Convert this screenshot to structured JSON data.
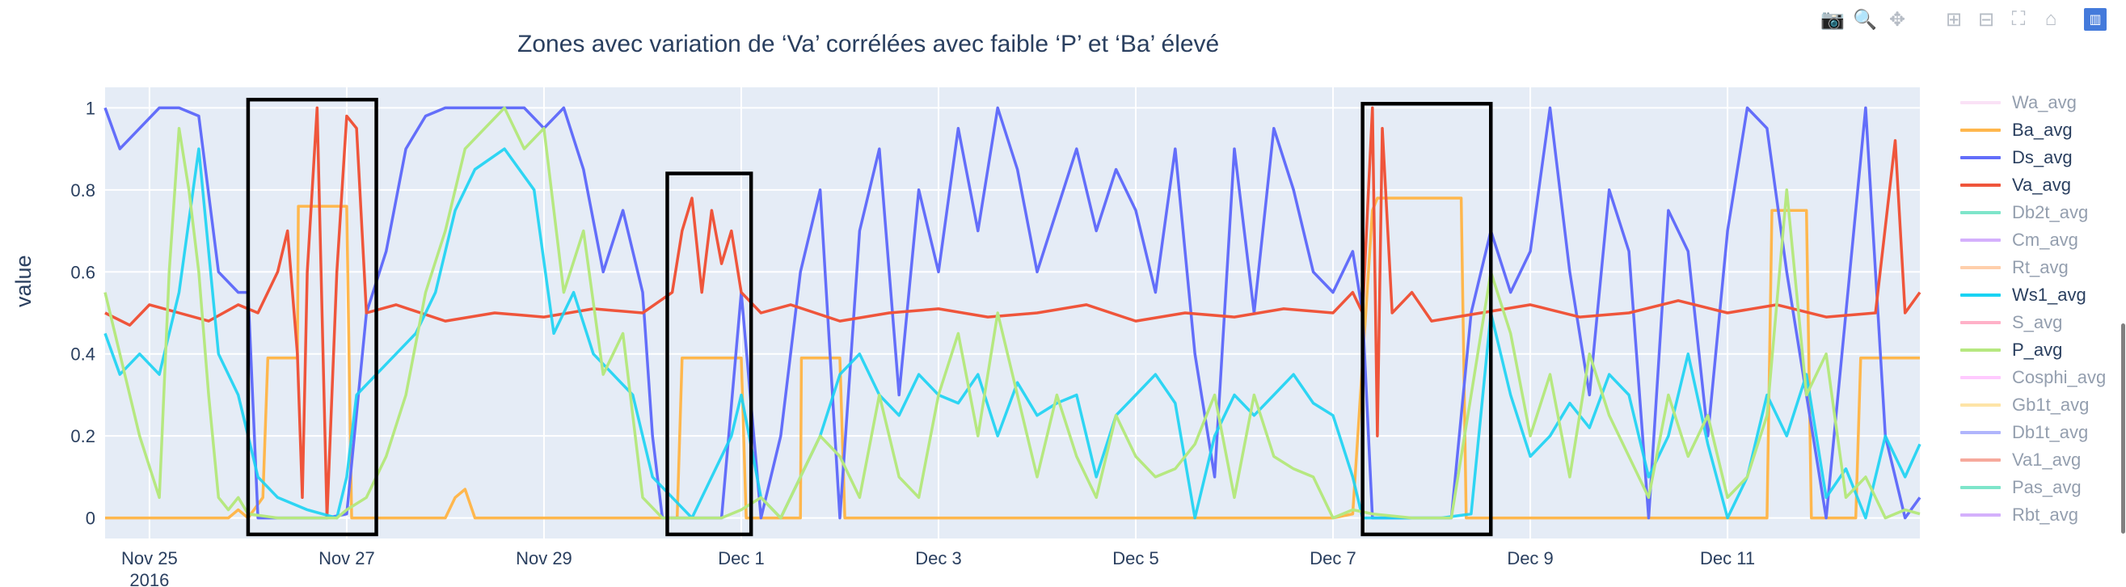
{
  "modebar": {
    "buttons": [
      {
        "name": "camera-icon",
        "glyph": "📷"
      },
      {
        "name": "zoom-icon",
        "glyph": "🔍"
      },
      {
        "name": "pan-icon",
        "glyph": "✥"
      },
      {
        "name": "zoom-in-icon",
        "glyph": "⊞"
      },
      {
        "name": "zoom-out-icon",
        "glyph": "⊟"
      },
      {
        "name": "autoscale-icon",
        "glyph": "⛶"
      },
      {
        "name": "home-icon",
        "glyph": "⌂"
      },
      {
        "name": "plotly-logo-icon",
        "glyph": "▥"
      }
    ]
  },
  "chart_data": {
    "type": "line",
    "title": "Zones avec variation de ‘Va’ corrélées avec faible ‘P’ et ‘Ba’ élevé",
    "xlabel": "",
    "ylabel": "value",
    "x_range_days": [
      -0.45,
      17.95
    ],
    "x_origin": "Nov 25 2016",
    "ylim": [
      -0.05,
      1.05
    ],
    "y_ticks": [
      0,
      0.2,
      0.4,
      0.6,
      0.8,
      1
    ],
    "y_tick_labels": [
      "0",
      "0.2",
      "0.4",
      "0.6",
      "0.8",
      "1"
    ],
    "x_ticks": [
      {
        "day": 0,
        "label": "Nov 25",
        "sub": "2016"
      },
      {
        "day": 2,
        "label": "Nov 27",
        "sub": ""
      },
      {
        "day": 4,
        "label": "Nov 29",
        "sub": ""
      },
      {
        "day": 6,
        "label": "Dec 1",
        "sub": ""
      },
      {
        "day": 8,
        "label": "Dec 3",
        "sub": ""
      },
      {
        "day": 10,
        "label": "Dec 5",
        "sub": ""
      },
      {
        "day": 12,
        "label": "Dec 7",
        "sub": ""
      },
      {
        "day": 14,
        "label": "Dec 9",
        "sub": ""
      },
      {
        "day": 16,
        "label": "Dec 11",
        "sub": ""
      }
    ],
    "highlight_boxes": [
      {
        "x0": 1.0,
        "x1": 2.3,
        "y0": -0.04,
        "y1": 1.02
      },
      {
        "x0": 5.25,
        "x1": 6.1,
        "y0": -0.04,
        "y1": 0.84
      },
      {
        "x0": 12.3,
        "x1": 13.6,
        "y0": -0.04,
        "y1": 1.01
      }
    ],
    "series": [
      {
        "name": "Wa_avg",
        "color": "#f7c6ee",
        "visible": false,
        "x": [],
        "y": []
      },
      {
        "name": "Ba_avg",
        "color": "#ffb74d",
        "visible": true,
        "x": [
          -0.45,
          0.8,
          0.9,
          1.0,
          1.15,
          1.2,
          1.5,
          1.51,
          2.0,
          2.05,
          3.0,
          3.1,
          3.2,
          3.3,
          4.0,
          5.0,
          5.35,
          5.4,
          6.0,
          6.05,
          6.6,
          6.61,
          7.0,
          7.05,
          8.0,
          8.05,
          9.0,
          9.05,
          10.0,
          10.05,
          11.0,
          11.05,
          12.0,
          12.2,
          12.4,
          12.45,
          12.5,
          13.3,
          13.35,
          14.0,
          14.05,
          16.0,
          16.05,
          16.4,
          16.45,
          16.8,
          16.85,
          17.0,
          17.3,
          17.35,
          17.95
        ],
        "y": [
          0,
          0,
          0.02,
          0.0,
          0.05,
          0.39,
          0.39,
          0.76,
          0.76,
          0.0,
          0.0,
          0.05,
          0.07,
          0.0,
          0.0,
          0.0,
          0.0,
          0.39,
          0.39,
          0.0,
          0.0,
          0.39,
          0.39,
          0.0,
          0.0,
          0.0,
          0.0,
          0.0,
          0.0,
          0.0,
          0.0,
          0.0,
          0.0,
          0.01,
          0.75,
          0.78,
          0.78,
          0.78,
          0.0,
          0.0,
          0.0,
          0.0,
          0.0,
          0.0,
          0.75,
          0.75,
          0.0,
          0.0,
          0.0,
          0.39,
          0.39
        ]
      },
      {
        "name": "Ds_avg",
        "color": "#636efa",
        "visible": true,
        "x": [
          -0.45,
          -0.3,
          -0.1,
          0.1,
          0.3,
          0.5,
          0.7,
          0.9,
          1.0,
          1.1,
          1.2,
          1.3,
          1.5,
          1.8,
          2.0,
          2.2,
          2.4,
          2.6,
          2.8,
          3.0,
          3.2,
          3.5,
          3.8,
          4.0,
          4.2,
          4.4,
          4.6,
          4.8,
          5.0,
          5.1,
          5.2,
          5.3,
          5.5,
          5.8,
          6.0,
          6.2,
          6.4,
          6.6,
          6.8,
          7.0,
          7.2,
          7.4,
          7.6,
          7.8,
          8.0,
          8.2,
          8.4,
          8.6,
          8.8,
          9.0,
          9.2,
          9.4,
          9.6,
          9.8,
          10.0,
          10.2,
          10.4,
          10.6,
          10.8,
          11.0,
          11.2,
          11.4,
          11.6,
          11.8,
          12.0,
          12.2,
          12.3,
          12.4,
          12.6,
          12.8,
          13.0,
          13.2,
          13.4,
          13.6,
          13.8,
          14.0,
          14.2,
          14.4,
          14.6,
          14.8,
          15.0,
          15.2,
          15.4,
          15.6,
          15.8,
          16.0,
          16.2,
          16.4,
          16.6,
          16.8,
          17.0,
          17.2,
          17.4,
          17.6,
          17.8,
          17.95
        ],
        "y": [
          1.0,
          0.9,
          0.95,
          1.0,
          1.0,
          0.98,
          0.6,
          0.55,
          0.55,
          0.0,
          0.0,
          0.0,
          0.0,
          0.0,
          0.01,
          0.5,
          0.65,
          0.9,
          0.98,
          1.0,
          1.0,
          1.0,
          1.0,
          0.95,
          1.0,
          0.85,
          0.6,
          0.75,
          0.55,
          0.2,
          0.0,
          0.0,
          0.0,
          0.0,
          0.55,
          0.0,
          0.2,
          0.6,
          0.8,
          0.0,
          0.7,
          0.9,
          0.3,
          0.8,
          0.6,
          0.95,
          0.7,
          1.0,
          0.85,
          0.6,
          0.75,
          0.9,
          0.7,
          0.85,
          0.75,
          0.55,
          0.9,
          0.4,
          0.1,
          0.9,
          0.5,
          0.95,
          0.8,
          0.6,
          0.55,
          0.65,
          0.5,
          0.0,
          0.0,
          0.0,
          0.0,
          0.0,
          0.5,
          0.7,
          0.55,
          0.65,
          1.0,
          0.6,
          0.3,
          0.8,
          0.65,
          0.0,
          0.75,
          0.65,
          0.2,
          0.7,
          1.0,
          0.95,
          0.6,
          0.3,
          0.0,
          0.5,
          1.0,
          0.2,
          0.0,
          0.05
        ]
      },
      {
        "name": "Va_avg",
        "color": "#ef553b",
        "visible": true,
        "x": [
          -0.45,
          -0.2,
          0.0,
          0.3,
          0.6,
          0.9,
          1.1,
          1.3,
          1.4,
          1.5,
          1.55,
          1.6,
          1.7,
          1.8,
          1.9,
          2.0,
          2.1,
          2.2,
          2.5,
          3.0,
          3.5,
          4.0,
          4.5,
          5.0,
          5.3,
          5.4,
          5.5,
          5.6,
          5.7,
          5.8,
          5.9,
          6.0,
          6.2,
          6.5,
          7.0,
          7.5,
          8.0,
          8.5,
          9.0,
          9.5,
          10.0,
          10.5,
          11.0,
          11.5,
          12.0,
          12.2,
          12.3,
          12.4,
          12.45,
          12.5,
          12.6,
          12.8,
          13.0,
          13.5,
          14.0,
          14.5,
          15.0,
          15.5,
          16.0,
          16.5,
          17.0,
          17.5,
          17.7,
          17.8,
          17.95
        ],
        "y": [
          0.5,
          0.47,
          0.52,
          0.5,
          0.48,
          0.52,
          0.5,
          0.6,
          0.7,
          0.4,
          0.05,
          0.6,
          1.0,
          0.0,
          0.6,
          0.98,
          0.95,
          0.5,
          0.52,
          0.48,
          0.5,
          0.49,
          0.51,
          0.5,
          0.55,
          0.7,
          0.78,
          0.55,
          0.75,
          0.62,
          0.7,
          0.55,
          0.5,
          0.52,
          0.48,
          0.5,
          0.51,
          0.49,
          0.5,
          0.52,
          0.48,
          0.5,
          0.49,
          0.51,
          0.5,
          0.55,
          0.5,
          1.0,
          0.2,
          0.95,
          0.5,
          0.55,
          0.48,
          0.5,
          0.52,
          0.49,
          0.5,
          0.53,
          0.5,
          0.52,
          0.49,
          0.5,
          0.92,
          0.5,
          0.55
        ]
      },
      {
        "name": "Db2t_avg",
        "color": "#00cc96",
        "visible": false,
        "x": [],
        "y": []
      },
      {
        "name": "Cm_avg",
        "color": "#ab63fa",
        "visible": false,
        "x": [],
        "y": []
      },
      {
        "name": "Rt_avg",
        "color": "#ffa15a",
        "visible": false,
        "x": [],
        "y": []
      },
      {
        "name": "Ws1_avg",
        "color": "#19d3f3",
        "visible": true,
        "dim": true,
        "x": [
          -0.45,
          -0.3,
          -0.1,
          0.1,
          0.3,
          0.5,
          0.7,
          0.9,
          1.0,
          1.1,
          1.3,
          1.6,
          1.9,
          2.0,
          2.1,
          2.3,
          2.5,
          2.7,
          2.9,
          3.1,
          3.3,
          3.6,
          3.9,
          4.1,
          4.3,
          4.5,
          4.7,
          4.9,
          5.1,
          5.3,
          5.5,
          5.7,
          5.9,
          6.0,
          6.2,
          6.4,
          6.6,
          6.8,
          7.0,
          7.2,
          7.4,
          7.6,
          7.8,
          8.0,
          8.2,
          8.4,
          8.6,
          8.8,
          9.0,
          9.2,
          9.4,
          9.6,
          9.8,
          10.0,
          10.2,
          10.4,
          10.6,
          10.8,
          11.0,
          11.2,
          11.4,
          11.6,
          11.8,
          12.0,
          12.2,
          12.3,
          12.5,
          12.8,
          13.1,
          13.4,
          13.6,
          13.8,
          14.0,
          14.2,
          14.4,
          14.6,
          14.8,
          15.0,
          15.2,
          15.4,
          15.6,
          15.8,
          16.0,
          16.2,
          16.4,
          16.6,
          16.8,
          17.0,
          17.2,
          17.4,
          17.6,
          17.8,
          17.95
        ],
        "y": [
          0.45,
          0.35,
          0.4,
          0.35,
          0.55,
          0.9,
          0.4,
          0.3,
          0.2,
          0.1,
          0.05,
          0.02,
          0.0,
          0.1,
          0.3,
          0.35,
          0.4,
          0.45,
          0.55,
          0.75,
          0.85,
          0.9,
          0.8,
          0.45,
          0.55,
          0.4,
          0.35,
          0.3,
          0.1,
          0.05,
          0.0,
          0.1,
          0.2,
          0.3,
          0.05,
          0.0,
          0.1,
          0.2,
          0.35,
          0.4,
          0.3,
          0.25,
          0.35,
          0.3,
          0.28,
          0.35,
          0.2,
          0.33,
          0.25,
          0.28,
          0.3,
          0.1,
          0.25,
          0.3,
          0.35,
          0.28,
          0.0,
          0.2,
          0.3,
          0.25,
          0.3,
          0.35,
          0.28,
          0.25,
          0.1,
          0.0,
          0.0,
          0.0,
          0.0,
          0.01,
          0.5,
          0.3,
          0.15,
          0.2,
          0.28,
          0.22,
          0.35,
          0.3,
          0.1,
          0.2,
          0.4,
          0.18,
          0.0,
          0.1,
          0.3,
          0.2,
          0.35,
          0.05,
          0.12,
          0.0,
          0.2,
          0.1,
          0.18
        ]
      },
      {
        "name": "S_avg",
        "color": "#ff6692",
        "visible": false,
        "x": [],
        "y": []
      },
      {
        "name": "P_avg",
        "color": "#b6e880",
        "visible": true,
        "x": [
          -0.45,
          -0.3,
          -0.1,
          0.1,
          0.2,
          0.3,
          0.4,
          0.5,
          0.6,
          0.7,
          0.8,
          0.9,
          1.0,
          1.3,
          1.6,
          1.9,
          2.0,
          2.2,
          2.4,
          2.6,
          2.8,
          3.0,
          3.2,
          3.4,
          3.6,
          3.8,
          4.0,
          4.2,
          4.4,
          4.6,
          4.8,
          5.0,
          5.2,
          5.5,
          5.8,
          6.0,
          6.2,
          6.4,
          6.6,
          6.8,
          7.0,
          7.2,
          7.4,
          7.6,
          7.8,
          8.0,
          8.2,
          8.4,
          8.6,
          8.8,
          9.0,
          9.2,
          9.4,
          9.6,
          9.8,
          10.0,
          10.2,
          10.4,
          10.6,
          10.8,
          11.0,
          11.2,
          11.4,
          11.6,
          11.8,
          12.0,
          12.2,
          12.4,
          12.8,
          13.2,
          13.4,
          13.6,
          13.8,
          14.0,
          14.2,
          14.4,
          14.6,
          14.8,
          15.0,
          15.2,
          15.4,
          15.6,
          15.8,
          16.0,
          16.2,
          16.4,
          16.6,
          16.8,
          17.0,
          17.2,
          17.4,
          17.6,
          17.8,
          17.95
        ],
        "y": [
          0.55,
          0.4,
          0.2,
          0.05,
          0.6,
          0.95,
          0.8,
          0.6,
          0.3,
          0.05,
          0.02,
          0.05,
          0.01,
          0.0,
          0.0,
          0.0,
          0.02,
          0.05,
          0.15,
          0.3,
          0.55,
          0.7,
          0.9,
          0.95,
          1.0,
          0.9,
          0.95,
          0.55,
          0.7,
          0.35,
          0.45,
          0.05,
          0.0,
          0.0,
          0.0,
          0.02,
          0.05,
          0.0,
          0.1,
          0.2,
          0.15,
          0.05,
          0.3,
          0.1,
          0.05,
          0.3,
          0.45,
          0.2,
          0.5,
          0.3,
          0.1,
          0.3,
          0.15,
          0.05,
          0.25,
          0.15,
          0.1,
          0.12,
          0.18,
          0.3,
          0.05,
          0.3,
          0.15,
          0.12,
          0.1,
          0.0,
          0.02,
          0.01,
          0.0,
          0.0,
          0.3,
          0.6,
          0.45,
          0.2,
          0.35,
          0.1,
          0.4,
          0.25,
          0.15,
          0.05,
          0.3,
          0.15,
          0.25,
          0.05,
          0.1,
          0.25,
          0.8,
          0.3,
          0.4,
          0.05,
          0.1,
          0.0,
          0.02,
          0.01
        ]
      },
      {
        "name": "Cosphi_avg",
        "color": "#ff97ff",
        "visible": false,
        "x": [],
        "y": []
      },
      {
        "name": "Gb1t_avg",
        "color": "#fecb52",
        "visible": false,
        "x": [],
        "y": []
      },
      {
        "name": "Db1t_avg",
        "color": "#636efa",
        "visible": false,
        "x": [],
        "y": []
      },
      {
        "name": "Va1_avg",
        "color": "#ef553b",
        "visible": false,
        "x": [],
        "y": []
      },
      {
        "name": "Pas_avg",
        "color": "#00cc96",
        "visible": false,
        "x": [],
        "y": []
      },
      {
        "name": "Rbt_avg",
        "color": "#ab63fa",
        "visible": false,
        "x": [],
        "y": []
      }
    ]
  }
}
